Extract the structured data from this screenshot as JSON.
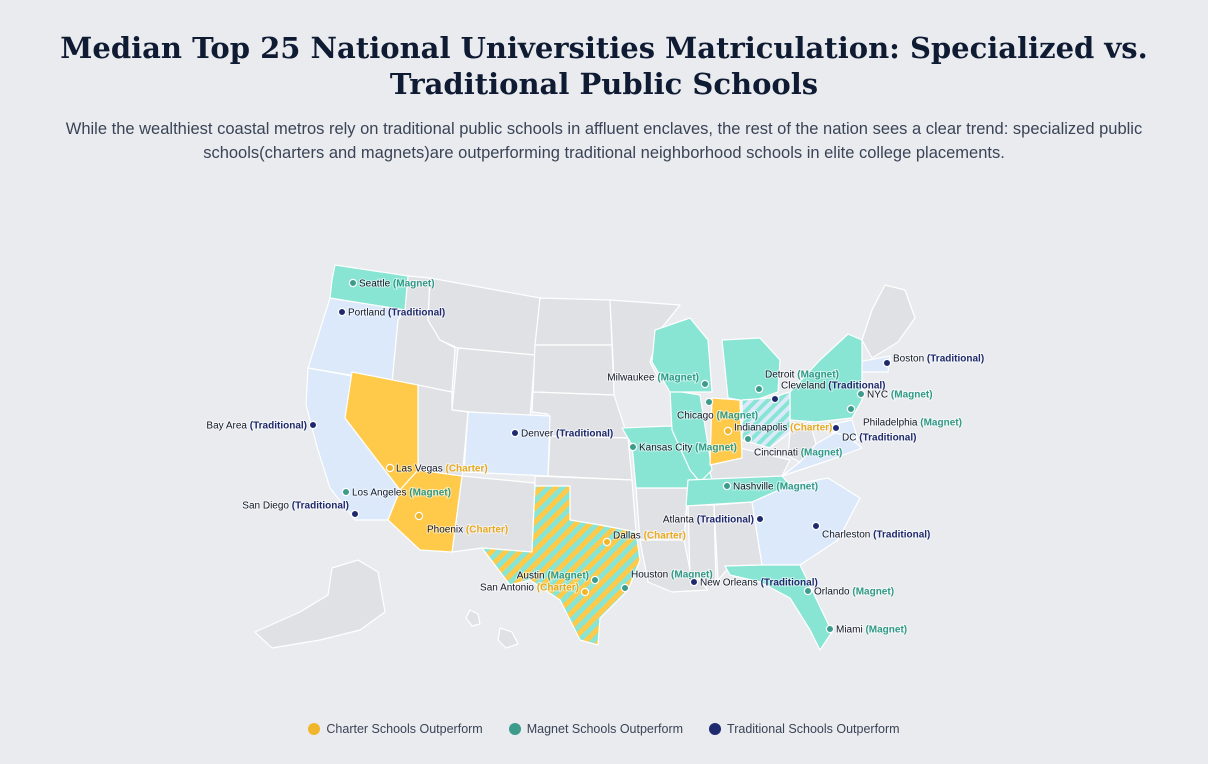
{
  "title": "Median Top 25 National Universities Matriculation: Specialized vs. Traditional Public Schools",
  "subtitle": "While the wealthiest coastal metros rely on traditional public schools in affluent enclaves, the rest of the nation sees a clear trend: specialized public schools(charters and magnets)are outperforming traditional neighborhood schools in elite college placements.",
  "colors": {
    "charter": "#ffc94a",
    "charter_dot": "#f1b52c",
    "magnet": "#88e5d3",
    "magnet_dot": "#3d9b8b",
    "traditional": "#dbe9fb",
    "traditional_dot": "#1f2a6e",
    "other": "#e0e1e5",
    "border": "#ffffff"
  },
  "legend": [
    {
      "label": "Charter Schools Outperform",
      "type": "charter"
    },
    {
      "label": "Magnet Schools Outperform",
      "type": "magnet"
    },
    {
      "label": "Traditional Schools Outperform",
      "type": "traditional"
    }
  ],
  "cities": [
    {
      "name": "Seattle",
      "type": "Magnet"
    },
    {
      "name": "Portland",
      "type": "Traditional"
    },
    {
      "name": "Bay Area",
      "type": "Traditional"
    },
    {
      "name": "Las Vegas",
      "type": "Charter"
    },
    {
      "name": "Los Angeles",
      "type": "Magnet"
    },
    {
      "name": "San Diego",
      "type": "Traditional"
    },
    {
      "name": "Phoenix",
      "type": "Charter"
    },
    {
      "name": "Denver",
      "type": "Traditional"
    },
    {
      "name": "Dallas",
      "type": "Charter"
    },
    {
      "name": "Austin",
      "type": "Magnet"
    },
    {
      "name": "San Antonio",
      "type": "Charter"
    },
    {
      "name": "Houston",
      "type": "Magnet"
    },
    {
      "name": "Kansas City",
      "type": "Magnet"
    },
    {
      "name": "Milwaukee",
      "type": "Magnet"
    },
    {
      "name": "Chicago",
      "type": "Magnet"
    },
    {
      "name": "Detroit",
      "type": "Magnet"
    },
    {
      "name": "Cleveland",
      "type": "Traditional"
    },
    {
      "name": "Indianapolis",
      "type": "Charter"
    },
    {
      "name": "Cincinnati",
      "type": "Magnet"
    },
    {
      "name": "Nashville",
      "type": "Magnet"
    },
    {
      "name": "Atlanta",
      "type": "Traditional"
    },
    {
      "name": "New Orleans",
      "type": "Traditional"
    },
    {
      "name": "Charleston",
      "type": "Traditional"
    },
    {
      "name": "Orlando",
      "type": "Magnet"
    },
    {
      "name": "Miami",
      "type": "Magnet"
    },
    {
      "name": "NYC",
      "type": "Magnet"
    },
    {
      "name": "Philadelphia",
      "type": "Magnet"
    },
    {
      "name": "DC",
      "type": "Traditional"
    },
    {
      "name": "Boston",
      "type": "Traditional"
    }
  ]
}
